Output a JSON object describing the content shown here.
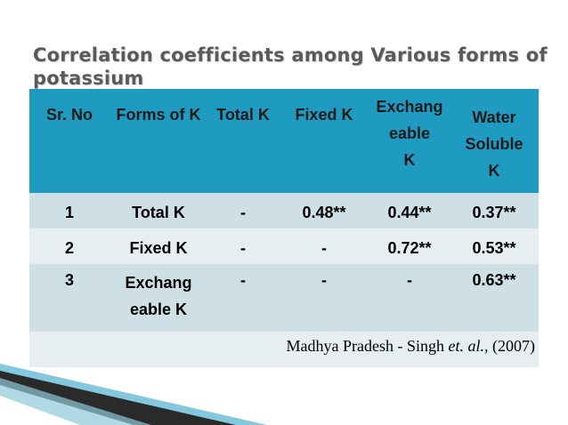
{
  "title": "Correlation coefficients among Various forms of potassium",
  "table": {
    "headers": {
      "sr_no": "Sr. No",
      "forms_of_k": "Forms of K",
      "total_k": "Total K",
      "fixed_k": "Fixed K",
      "exch_line1": "Exchang",
      "exch_line2": "eable",
      "exch_line3": "K",
      "water_line1": "Water",
      "water_line2": "Soluble",
      "water_line3": "K"
    },
    "rows": [
      {
        "sr": "1",
        "form": "Total K",
        "total": "-",
        "fixed": "0.48**",
        "exch": "0.44**",
        "water": "0.37**"
      },
      {
        "sr": "2",
        "form": "Fixed K",
        "total": "-",
        "fixed": "-",
        "exch": "0.72**",
        "water": "0.53**"
      },
      {
        "sr": "3",
        "form": "Exchang eable K",
        "total": "-",
        "fixed": "-",
        "exch": "-",
        "water": "0.63**"
      }
    ],
    "source": {
      "prefix": "Madhya Pradesh - Singh ",
      "italic": "et. al.,",
      "suffix": " (2007)"
    }
  },
  "colors": {
    "header_bg": "#1f9bc1",
    "row_dark": "#cfdfe6",
    "row_light": "#e6eef2",
    "title": "#5a5a5a"
  }
}
